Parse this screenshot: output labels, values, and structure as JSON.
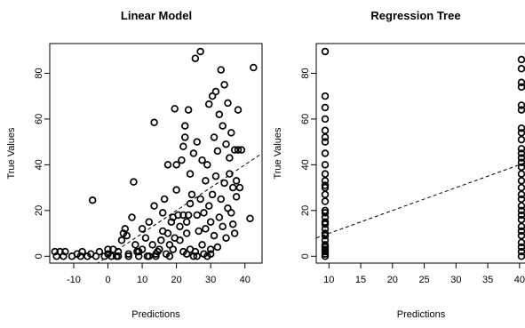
{
  "chart_data": [
    {
      "type": "scatter",
      "title": "Linear Model",
      "xlabel": "Predictions",
      "ylabel": "True Values",
      "xlim": [
        -17,
        45
      ],
      "ylim": [
        -3,
        93
      ],
      "xticks": [
        "-10",
        "0",
        "10",
        "20",
        "30",
        "40"
      ],
      "xtick_values": [
        -10,
        0,
        10,
        20,
        30,
        40
      ],
      "yticks": [
        "0",
        "20",
        "40",
        "60",
        "80"
      ],
      "ytick_values": [
        0,
        20,
        40,
        60,
        80
      ],
      "grid": false,
      "reference_line": {
        "style": "dashed",
        "slope": 1,
        "intercept": 0
      },
      "points": [
        [
          -15.5,
          2
        ],
        [
          -15,
          0
        ],
        [
          -14,
          2
        ],
        [
          -13,
          0
        ],
        [
          -12.5,
          2
        ],
        [
          -10.5,
          0
        ],
        [
          -9,
          1
        ],
        [
          -8,
          0
        ],
        [
          -7.5,
          2
        ],
        [
          -6,
          0
        ],
        [
          -5,
          1
        ],
        [
          -4.5,
          24.5
        ],
        [
          -3.5,
          0
        ],
        [
          -2.5,
          2
        ],
        [
          -1,
          0
        ],
        [
          0,
          1
        ],
        [
          1,
          0
        ],
        [
          1.5,
          3
        ],
        [
          2.5,
          0
        ],
        [
          3,
          2
        ],
        [
          4,
          7
        ],
        [
          4.5,
          10
        ],
        [
          5,
          12
        ],
        [
          5.5,
          9
        ],
        [
          6,
          1
        ],
        [
          7,
          17
        ],
        [
          7.5,
          32.5
        ],
        [
          8,
          5
        ],
        [
          8.5,
          2
        ],
        [
          9,
          0
        ],
        [
          10,
          3
        ],
        [
          10,
          12
        ],
        [
          11,
          8
        ],
        [
          11.5,
          0
        ],
        [
          12,
          15
        ],
        [
          13,
          5
        ],
        [
          13.5,
          22
        ],
        [
          13.5,
          58.5
        ],
        [
          14,
          0
        ],
        [
          14.5,
          2
        ],
        [
          15,
          3
        ],
        [
          15.5,
          7
        ],
        [
          16,
          19
        ],
        [
          16.5,
          25
        ],
        [
          17,
          1
        ],
        [
          17.5,
          10
        ],
        [
          17.5,
          40
        ],
        [
          18,
          5
        ],
        [
          18.5,
          15
        ],
        [
          19,
          3
        ],
        [
          19.5,
          8
        ],
        [
          19.5,
          64.5
        ],
        [
          20,
          29
        ],
        [
          20,
          40
        ],
        [
          20.5,
          18
        ],
        [
          21,
          7
        ],
        [
          21,
          13
        ],
        [
          21.5,
          42
        ],
        [
          22,
          2
        ],
        [
          22,
          48
        ],
        [
          22.5,
          52
        ],
        [
          22.5,
          57
        ],
        [
          23,
          1
        ],
        [
          23,
          10
        ],
        [
          23,
          15
        ],
        [
          23.5,
          18
        ],
        [
          23.5,
          64
        ],
        [
          24,
          3
        ],
        [
          24,
          23
        ],
        [
          24,
          36
        ],
        [
          24.5,
          27
        ],
        [
          25,
          0
        ],
        [
          25,
          45
        ],
        [
          25.5,
          2
        ],
        [
          25.5,
          86.5
        ],
        [
          26,
          18
        ],
        [
          26,
          50
        ],
        [
          26.5,
          11
        ],
        [
          27,
          89.5
        ],
        [
          27,
          25
        ],
        [
          27.5,
          5
        ],
        [
          27.5,
          42
        ],
        [
          28,
          1
        ],
        [
          28,
          19
        ],
        [
          28.5,
          12
        ],
        [
          28.5,
          33
        ],
        [
          29,
          0
        ],
        [
          29,
          40
        ],
        [
          29.5,
          22
        ],
        [
          29.5,
          66.5
        ],
        [
          30,
          3
        ],
        [
          30,
          15
        ],
        [
          30.5,
          27
        ],
        [
          30.5,
          70
        ],
        [
          31,
          9
        ],
        [
          31,
          52
        ],
        [
          31.5,
          35
        ],
        [
          31.5,
          72
        ],
        [
          32,
          4
        ],
        [
          32,
          46
        ],
        [
          32.5,
          17
        ],
        [
          32.5,
          62
        ],
        [
          33,
          25
        ],
        [
          33,
          81.5
        ],
        [
          33.5,
          13
        ],
        [
          33.5,
          57
        ],
        [
          34,
          32
        ],
        [
          34,
          75
        ],
        [
          34.5,
          8
        ],
        [
          34.5,
          49
        ],
        [
          35,
          21
        ],
        [
          35,
          67
        ],
        [
          35.5,
          36
        ],
        [
          35.5,
          43
        ],
        [
          36,
          19
        ],
        [
          36,
          54
        ],
        [
          36.5,
          14
        ],
        [
          36.5,
          30
        ],
        [
          37,
          10
        ],
        [
          37,
          46.5
        ],
        [
          37.5,
          26
        ],
        [
          37.5,
          33
        ],
        [
          38,
          64
        ],
        [
          38,
          46.5
        ],
        [
          38.5,
          30
        ],
        [
          39,
          46.5
        ],
        [
          41.5,
          16.5
        ],
        [
          42.5,
          82.5
        ],
        [
          22,
          18
        ],
        [
          19,
          17
        ],
        [
          16,
          11
        ],
        [
          12,
          0
        ],
        [
          9,
          2
        ],
        [
          6,
          0
        ],
        [
          3,
          0
        ],
        [
          0,
          3
        ],
        [
          26,
          0
        ],
        [
          30,
          1
        ],
        [
          18,
          0
        ],
        [
          14,
          1
        ]
      ]
    },
    {
      "type": "scatter",
      "title": "Regression Tree",
      "xlabel": "Predictions",
      "ylabel": "True Values",
      "xlim": [
        8,
        41
      ],
      "ylim": [
        -3,
        93
      ],
      "xticks": [
        "10",
        "15",
        "20",
        "25",
        "30",
        "35",
        "40"
      ],
      "xtick_values": [
        10,
        15,
        20,
        25,
        30,
        35,
        40
      ],
      "yticks": [
        "0",
        "20",
        "40",
        "60",
        "80"
      ],
      "ytick_values": [
        0,
        20,
        40,
        60,
        80
      ],
      "grid": false,
      "reference_line": {
        "style": "dashed",
        "slope": 1,
        "intercept": 0
      },
      "points": [
        [
          9.4,
          89.5
        ],
        [
          9.4,
          70
        ],
        [
          9.4,
          65
        ],
        [
          9.4,
          60
        ],
        [
          9.4,
          55
        ],
        [
          9.4,
          52
        ],
        [
          9.4,
          50
        ],
        [
          9.4,
          45
        ],
        [
          9.4,
          40
        ],
        [
          9.4,
          36
        ],
        [
          9.4,
          33
        ],
        [
          9.4,
          31
        ],
        [
          9.4,
          30
        ],
        [
          9.4,
          27
        ],
        [
          9.4,
          24
        ],
        [
          9.4,
          20
        ],
        [
          9.4,
          19
        ],
        [
          9.4,
          17
        ],
        [
          9.4,
          15
        ],
        [
          9.4,
          14
        ],
        [
          9.4,
          12
        ],
        [
          9.4,
          10
        ],
        [
          9.4,
          9
        ],
        [
          9.4,
          7
        ],
        [
          9.4,
          5
        ],
        [
          9.4,
          4
        ],
        [
          9.4,
          3
        ],
        [
          9.4,
          2
        ],
        [
          9.4,
          1
        ],
        [
          9.4,
          0
        ],
        [
          40.3,
          86
        ],
        [
          40.3,
          82
        ],
        [
          40.3,
          76
        ],
        [
          40.3,
          74
        ],
        [
          40.3,
          66
        ],
        [
          40.3,
          64
        ],
        [
          40.3,
          56
        ],
        [
          40.3,
          54
        ],
        [
          40.3,
          51
        ],
        [
          40.3,
          47
        ],
        [
          40.3,
          45
        ],
        [
          40.3,
          43
        ],
        [
          40.3,
          41
        ],
        [
          40.3,
          39
        ],
        [
          40.3,
          36
        ],
        [
          40.3,
          33
        ],
        [
          40.3,
          30
        ],
        [
          40.3,
          27
        ],
        [
          40.3,
          25
        ],
        [
          40.3,
          22
        ],
        [
          40.3,
          20
        ],
        [
          40.3,
          18
        ],
        [
          40.3,
          16
        ],
        [
          40.3,
          13
        ],
        [
          40.3,
          11
        ],
        [
          40.3,
          9
        ],
        [
          40.3,
          6
        ],
        [
          40.3,
          4
        ],
        [
          40.3,
          2
        ],
        [
          40.3,
          0
        ]
      ]
    }
  ]
}
